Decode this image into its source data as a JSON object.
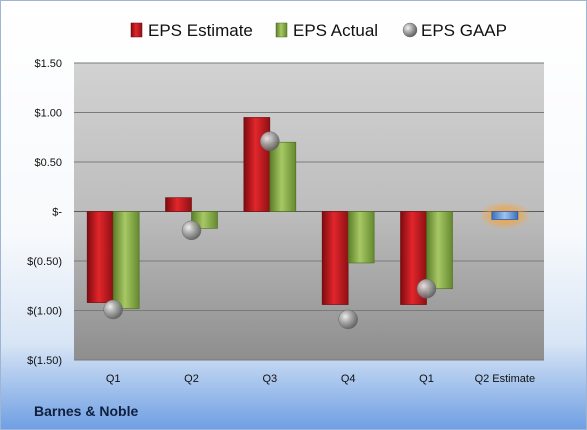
{
  "company": "Barnes & Noble",
  "chart_data": {
    "type": "bar",
    "categories": [
      "Q1",
      "Q2",
      "Q3",
      "Q4",
      "Q1",
      "Q2 Estimate"
    ],
    "series": [
      {
        "name": "EPS Estimate",
        "color": "#c8141b",
        "values": [
          -0.92,
          0.14,
          0.95,
          -0.94,
          -0.94,
          null
        ]
      },
      {
        "name": "EPS Actual",
        "color": "#8db04b",
        "values": [
          -0.98,
          -0.17,
          0.7,
          -0.52,
          -0.78,
          -0.08
        ]
      },
      {
        "name": "EPS GAAP",
        "color": "#a6a6a6",
        "marker": "sphere",
        "values": [
          -0.99,
          -0.19,
          0.71,
          -1.09,
          -0.78,
          null
        ]
      }
    ],
    "highlight": {
      "category": "Q2 Estimate",
      "value": -0.08,
      "color": "#5b8fd6",
      "glow": "#f5a23a"
    },
    "yticks": [
      {
        "value": 1.5,
        "label": "$1.50"
      },
      {
        "value": 1.0,
        "label": "$1.00"
      },
      {
        "value": 0.5,
        "label": "$0.50"
      },
      {
        "value": 0,
        "label": "$-"
      },
      {
        "value": -0.5,
        "label": "$(0.50)"
      },
      {
        "value": -1.0,
        "label": "$(1.00)"
      },
      {
        "value": -1.5,
        "label": "$(1.50)"
      }
    ],
    "ylim": [
      -1.5,
      1.5
    ],
    "grid": true,
    "legend_position": "top"
  }
}
